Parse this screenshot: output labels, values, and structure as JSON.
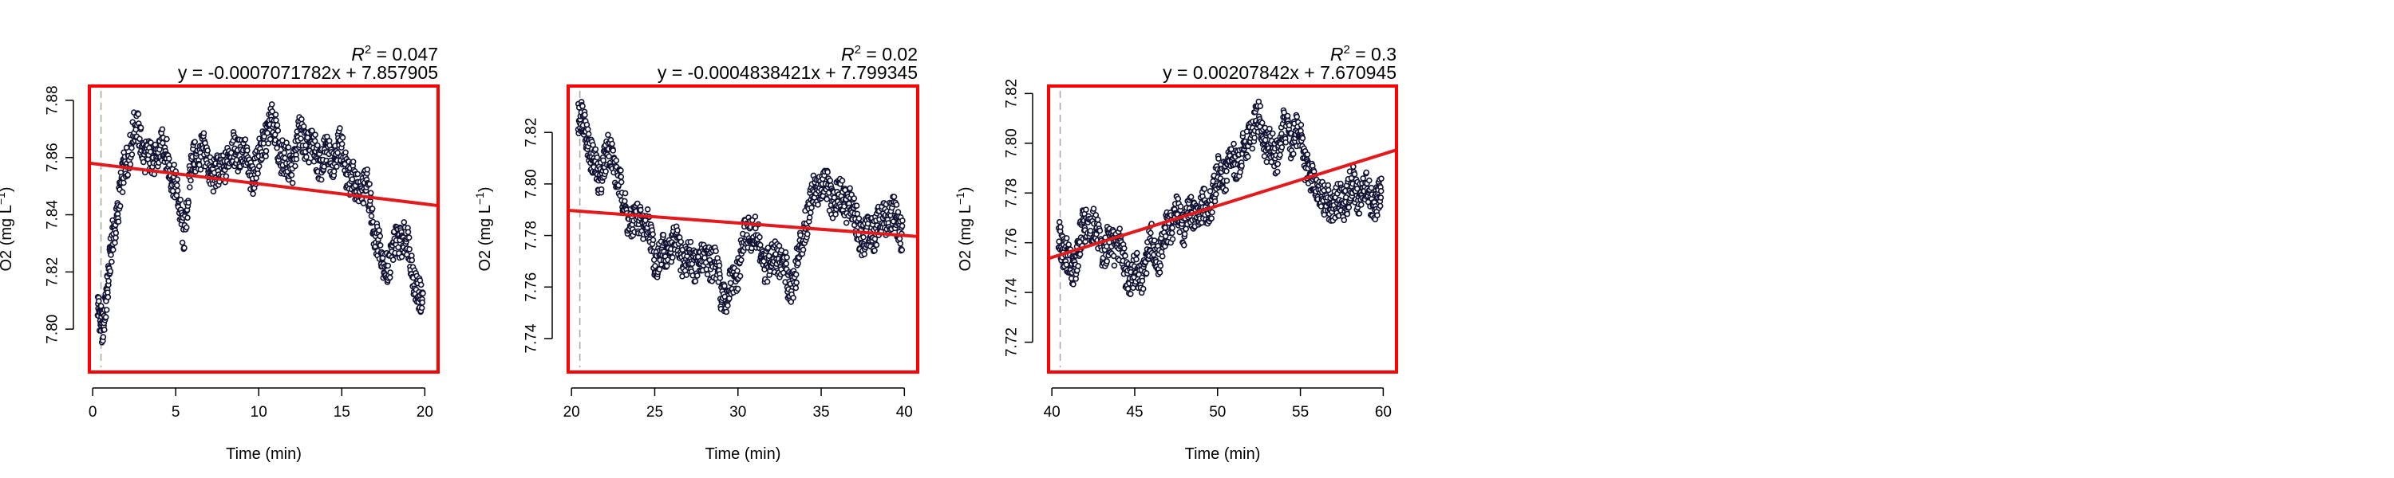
{
  "colors": {
    "frame": "#ff0000",
    "fit_line": "#e31a1c",
    "points_stroke": "#111133",
    "points_fill": "#ffffff",
    "marker_line": "#aaaaaa"
  },
  "chart_data": [
    {
      "type": "scatter",
      "r2_label": "R",
      "r2_sup": "2",
      "r2_value": " = 0.047",
      "equation": "y = -0.0007071782x + 7.857905",
      "xlabel": "Time (min)",
      "ylabel": "O2 (mg L",
      "ylabel_sup": "−1",
      "ylabel_tail": ")",
      "xlim": [
        -0.2,
        20.8
      ],
      "ylim": [
        7.785,
        7.885
      ],
      "xticks": [
        0,
        5,
        10,
        15,
        20
      ],
      "yticks": [
        7.8,
        7.82,
        7.84,
        7.86,
        7.88
      ],
      "ytick_labels": [
        "7.80",
        "7.82",
        "7.84",
        "7.86",
        "7.88"
      ],
      "marker_x": 0.5,
      "fit": {
        "slope": -0.0007071782,
        "intercept": 7.857905
      },
      "trend": [
        [
          0.3,
          7.804
        ],
        [
          0.6,
          7.798
        ],
        [
          0.9,
          7.812
        ],
        [
          1.2,
          7.834
        ],
        [
          1.6,
          7.85
        ],
        [
          2.0,
          7.858
        ],
        [
          2.5,
          7.866
        ],
        [
          3.0,
          7.864
        ],
        [
          3.5,
          7.862
        ],
        [
          4.0,
          7.864
        ],
        [
          4.5,
          7.856
        ],
        [
          5.0,
          7.848
        ],
        [
          5.5,
          7.838
        ],
        [
          6.0,
          7.86
        ],
        [
          6.5,
          7.858
        ],
        [
          7.0,
          7.856
        ],
        [
          7.5,
          7.857
        ],
        [
          8.0,
          7.86
        ],
        [
          8.5,
          7.858
        ],
        [
          9.0,
          7.861
        ],
        [
          9.5,
          7.858
        ],
        [
          10.0,
          7.86
        ],
        [
          10.5,
          7.866
        ],
        [
          11.0,
          7.868
        ],
        [
          11.5,
          7.862
        ],
        [
          12.0,
          7.86
        ],
        [
          12.5,
          7.864
        ],
        [
          13.0,
          7.862
        ],
        [
          13.5,
          7.864
        ],
        [
          14.0,
          7.862
        ],
        [
          14.5,
          7.858
        ],
        [
          15.0,
          7.86
        ],
        [
          15.5,
          7.856
        ],
        [
          16.0,
          7.852
        ],
        [
          16.5,
          7.846
        ],
        [
          17.0,
          7.832
        ],
        [
          17.5,
          7.826
        ],
        [
          18.0,
          7.828
        ],
        [
          18.5,
          7.83
        ],
        [
          19.0,
          7.826
        ],
        [
          19.5,
          7.818
        ],
        [
          19.9,
          7.81
        ]
      ]
    },
    {
      "type": "scatter",
      "r2_label": "R",
      "r2_sup": "2",
      "r2_value": " = 0.02",
      "equation": "y = -0.0004838421x + 7.799345",
      "xlabel": "Time (min)",
      "ylabel": "O2 (mg L",
      "ylabel_sup": "−1",
      "ylabel_tail": ")",
      "xlim": [
        19.8,
        40.8
      ],
      "ylim": [
        7.727,
        7.838
      ],
      "xticks": [
        20,
        25,
        30,
        35,
        40
      ],
      "yticks": [
        7.74,
        7.76,
        7.78,
        7.8,
        7.82
      ],
      "ytick_labels": [
        "7.74",
        "7.76",
        "7.78",
        "7.80",
        "7.82"
      ],
      "marker_x": 20.5,
      "fit": {
        "slope": -0.0004838421,
        "intercept": 7.799345
      },
      "trend": [
        [
          20.4,
          7.82
        ],
        [
          20.8,
          7.822
        ],
        [
          21.2,
          7.814
        ],
        [
          21.6,
          7.806
        ],
        [
          22.0,
          7.81
        ],
        [
          22.5,
          7.806
        ],
        [
          23.0,
          7.796
        ],
        [
          23.5,
          7.79
        ],
        [
          24.0,
          7.786
        ],
        [
          24.5,
          7.78
        ],
        [
          25.0,
          7.772
        ],
        [
          25.5,
          7.776
        ],
        [
          26.0,
          7.778
        ],
        [
          26.5,
          7.768
        ],
        [
          27.0,
          7.77
        ],
        [
          27.5,
          7.774
        ],
        [
          28.0,
          7.772
        ],
        [
          28.5,
          7.766
        ],
        [
          29.0,
          7.756
        ],
        [
          29.5,
          7.762
        ],
        [
          30.0,
          7.768
        ],
        [
          30.5,
          7.776
        ],
        [
          31.0,
          7.78
        ],
        [
          31.5,
          7.774
        ],
        [
          32.0,
          7.772
        ],
        [
          32.5,
          7.768
        ],
        [
          33.0,
          7.76
        ],
        [
          33.5,
          7.77
        ],
        [
          34.0,
          7.786
        ],
        [
          34.5,
          7.792
        ],
        [
          35.0,
          7.798
        ],
        [
          35.5,
          7.8
        ],
        [
          36.0,
          7.796
        ],
        [
          36.5,
          7.79
        ],
        [
          37.0,
          7.786
        ],
        [
          37.5,
          7.782
        ],
        [
          38.0,
          7.784
        ],
        [
          38.5,
          7.78
        ],
        [
          39.0,
          7.786
        ],
        [
          39.5,
          7.79
        ],
        [
          39.9,
          7.786
        ]
      ]
    },
    {
      "type": "scatter",
      "r2_label": "R",
      "r2_sup": "2",
      "r2_value": " = 0.3",
      "equation": "y = 0.00207842x + 7.670945",
      "xlabel": "Time (min)",
      "ylabel": "O2 (mg L",
      "ylabel_sup": "−1",
      "ylabel_tail": ")",
      "xlim": [
        39.8,
        60.8
      ],
      "ylim": [
        7.708,
        7.823
      ],
      "xticks": [
        40,
        45,
        50,
        55,
        60
      ],
      "yticks": [
        7.72,
        7.74,
        7.76,
        7.78,
        7.8,
        7.82
      ],
      "ytick_labels": [
        "7.72",
        "7.74",
        "7.76",
        "7.78",
        "7.80",
        "7.82"
      ],
      "marker_x": 40.5,
      "fit": {
        "slope": 0.00207842,
        "intercept": 7.670945
      },
      "trend": [
        [
          40.4,
          7.76
        ],
        [
          40.8,
          7.754
        ],
        [
          41.2,
          7.752
        ],
        [
          41.6,
          7.762
        ],
        [
          42.0,
          7.766
        ],
        [
          42.5,
          7.762
        ],
        [
          43.0,
          7.758
        ],
        [
          43.5,
          7.764
        ],
        [
          44.0,
          7.76
        ],
        [
          44.5,
          7.742
        ],
        [
          45.0,
          7.748
        ],
        [
          45.5,
          7.752
        ],
        [
          46.0,
          7.76
        ],
        [
          46.5,
          7.748
        ],
        [
          47.0,
          7.768
        ],
        [
          47.5,
          7.776
        ],
        [
          48.0,
          7.768
        ],
        [
          48.5,
          7.766
        ],
        [
          49.0,
          7.772
        ],
        [
          49.5,
          7.78
        ],
        [
          50.0,
          7.786
        ],
        [
          50.5,
          7.784
        ],
        [
          51.0,
          7.792
        ],
        [
          51.5,
          7.8
        ],
        [
          52.0,
          7.806
        ],
        [
          52.5,
          7.804
        ],
        [
          53.0,
          7.798
        ],
        [
          53.5,
          7.8
        ],
        [
          54.0,
          7.806
        ],
        [
          54.5,
          7.798
        ],
        [
          55.0,
          7.802
        ],
        [
          55.5,
          7.792
        ],
        [
          56.0,
          7.784
        ],
        [
          56.5,
          7.77
        ],
        [
          57.0,
          7.774
        ],
        [
          57.5,
          7.78
        ],
        [
          58.0,
          7.784
        ],
        [
          58.5,
          7.776
        ],
        [
          59.0,
          7.778
        ],
        [
          59.5,
          7.78
        ],
        [
          59.9,
          7.782
        ]
      ]
    }
  ]
}
